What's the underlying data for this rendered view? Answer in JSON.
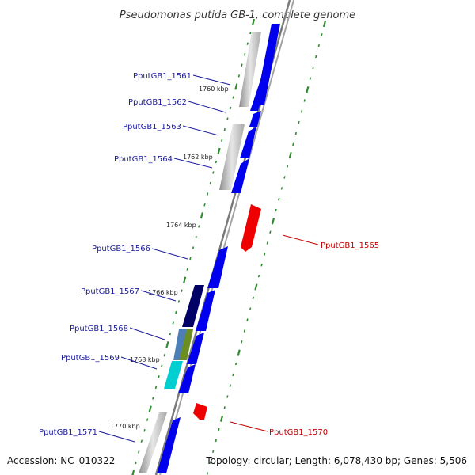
{
  "title": "Pseudomonas putida GB-1, complete genome",
  "footer": {
    "accession": "Accession: NC_010322",
    "summary": "Topology: circular; Length: 6,078,430 bp; Genes: 5,506"
  },
  "colors": {
    "backbone": "#8a8a8a",
    "gene_forward": "#0000ee",
    "gene_reverse": "#ee0000",
    "gc_plot": "#b8b8b8",
    "tick_marks": "#2e8b2e",
    "label_forward": "#1a1a9c",
    "label_reverse": "#c00000"
  },
  "scale": {
    "unit": "kbp",
    "ticks": [
      {
        "label": "1760 kbp"
      },
      {
        "label": "1762 kbp"
      },
      {
        "label": "1764 kbp"
      },
      {
        "label": "1766 kbp"
      },
      {
        "label": "1768 kbp"
      },
      {
        "label": "1770 kbp"
      }
    ]
  },
  "genes": [
    {
      "id": "PputGB1_1561",
      "strand": "+"
    },
    {
      "id": "PputGB1_1562",
      "strand": "+"
    },
    {
      "id": "PputGB1_1563",
      "strand": "+"
    },
    {
      "id": "PputGB1_1564",
      "strand": "+"
    },
    {
      "id": "PputGB1_1565",
      "strand": "-"
    },
    {
      "id": "PputGB1_1566",
      "strand": "+"
    },
    {
      "id": "PputGB1_1567",
      "strand": "+"
    },
    {
      "id": "PputGB1_1568",
      "strand": "+"
    },
    {
      "id": "PputGB1_1569",
      "strand": "+"
    },
    {
      "id": "PputGB1_1570",
      "strand": "-"
    },
    {
      "id": "PputGB1_1571",
      "strand": "+"
    }
  ]
}
